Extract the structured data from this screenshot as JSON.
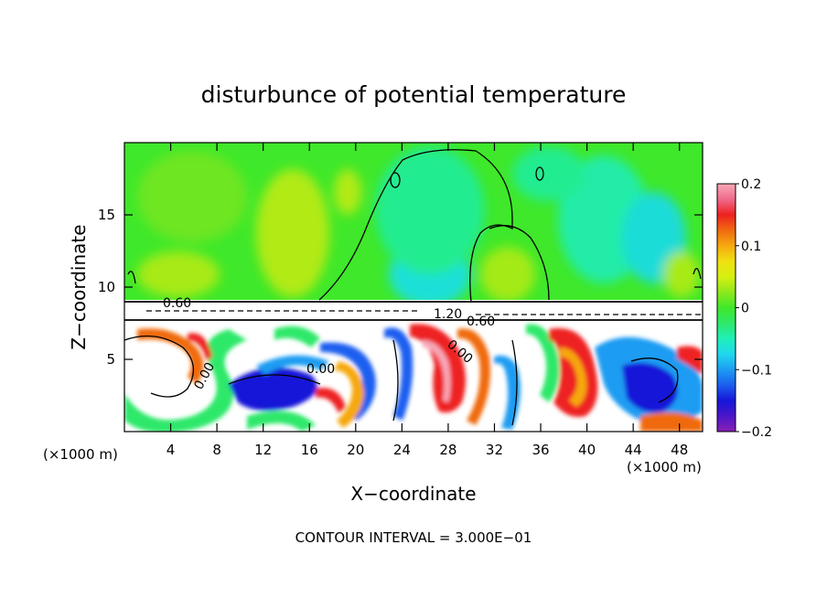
{
  "chart_data": {
    "type": "heatmap",
    "title": "disturbunce of potential temperature",
    "xlabel": "X−coordinate",
    "ylabel": "Z−coordinate",
    "x_unit_left": "(×1000 m)",
    "x_unit_right": "(×1000 m)",
    "xlim": [
      0,
      50
    ],
    "ylim": [
      0,
      20
    ],
    "x_ticks": [
      4,
      8,
      12,
      16,
      20,
      24,
      28,
      32,
      36,
      40,
      44,
      48
    ],
    "x_tick_labels": [
      "4",
      "8",
      "12",
      "16",
      "20",
      "24",
      "28",
      "32",
      "36",
      "40",
      "44",
      "48"
    ],
    "y_ticks": [
      5,
      10,
      15
    ],
    "y_tick_labels": [
      "5",
      "10",
      "15"
    ],
    "colorbar": {
      "min": -0.2,
      "max": 0.2,
      "tick_values": [
        0.2,
        0.1,
        0,
        -0.1,
        -0.2
      ],
      "tick_labels": [
        "0.2",
        "0.1",
        "0",
        "−0.1",
        "−0.2"
      ],
      "colors": [
        "#8a1fb3",
        "#4b16c8",
        "#1616d8",
        "#1c5ef0",
        "#1c9cf2",
        "#1fd8ee",
        "#1ff0b8",
        "#2ee86a",
        "#3fe82a",
        "#8ee81c",
        "#d6f010",
        "#f0e010",
        "#f6a810",
        "#f06a10",
        "#ee2020",
        "#f06a8c",
        "#f8a8b8"
      ]
    },
    "contour_labels": [
      "0.60",
      "0.00",
      "0.00",
      "1.20",
      "0.60",
      "0.00"
    ],
    "footnote": "CONTOUR INTERVAL = 3.000E−01"
  }
}
